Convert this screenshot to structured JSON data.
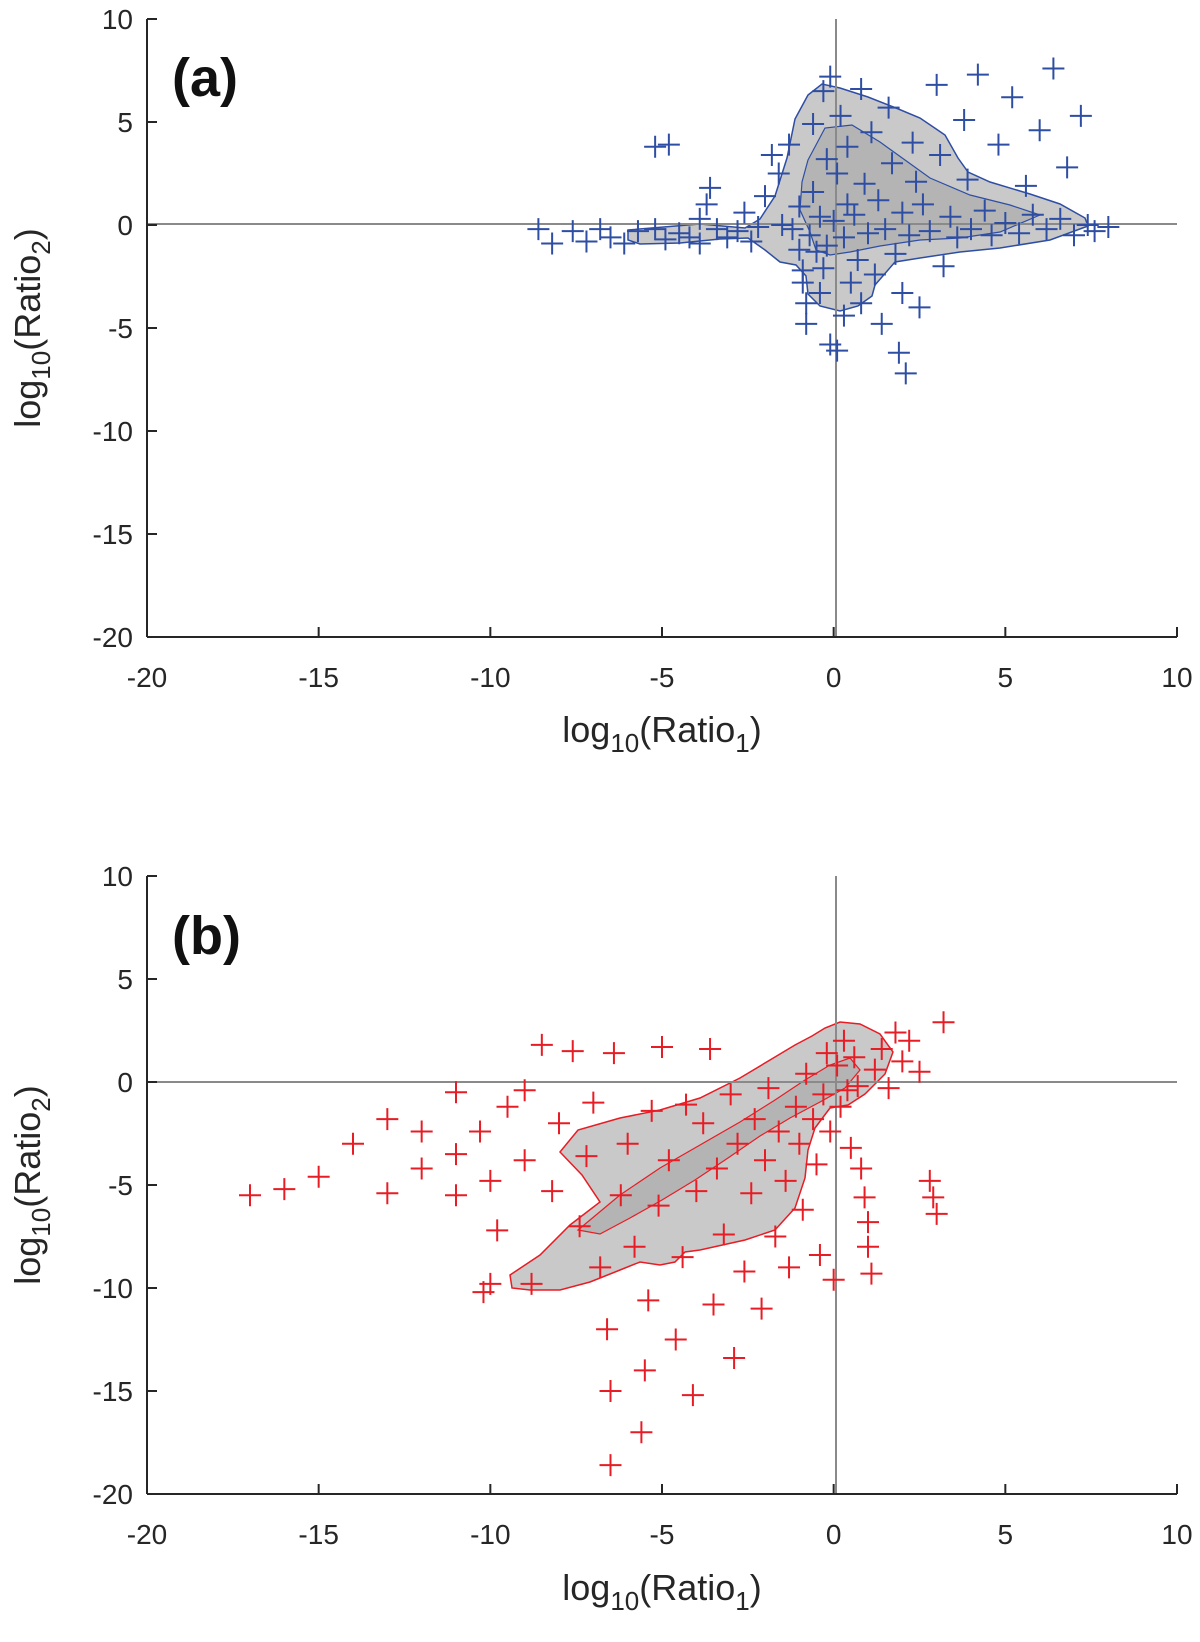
{
  "chart_data": [
    {
      "type": "scatter",
      "panel_label": "(a)",
      "xlabel": {
        "base": "log",
        "sub1": "10",
        "mid": "(Ratio",
        "sub2": "1",
        "end": ")"
      },
      "ylabel": {
        "base": "log",
        "sub1": "10",
        "mid": "(Ratio",
        "sub2": "2",
        "end": ")"
      },
      "xlim": [
        -20,
        10
      ],
      "ylim": [
        -20,
        10
      ],
      "xticks": [
        -20,
        -15,
        -10,
        -5,
        0,
        5,
        10
      ],
      "yticks": [
        10,
        5,
        0,
        -5,
        -10,
        -15,
        -20
      ],
      "xtick_labels": [
        "-20",
        "-15",
        "-10",
        "-5",
        "0",
        "5",
        "10"
      ],
      "ytick_labels": [
        "10",
        "5",
        "0",
        "-5",
        "-10",
        "-15",
        "-20"
      ],
      "reference_lines": {
        "x": 0,
        "y": 0
      },
      "grid": false,
      "marker": "+",
      "marker_color": "#2e4ea4",
      "region_fill": "#c9c9c9",
      "region_outline": "#2e4ea4",
      "points": [
        [
          -8.6,
          -0.2
        ],
        [
          -8.2,
          -0.9
        ],
        [
          -7.6,
          -0.3
        ],
        [
          -7.2,
          -0.8
        ],
        [
          -6.8,
          -0.2
        ],
        [
          -6.5,
          -0.6
        ],
        [
          -6.1,
          -0.9
        ],
        [
          -5.7,
          -0.3
        ],
        [
          -5.2,
          3.8
        ],
        [
          -5.2,
          -0.2
        ],
        [
          -4.9,
          -0.7
        ],
        [
          -4.8,
          3.9
        ],
        [
          -4.5,
          -0.4
        ],
        [
          -4.2,
          -0.6
        ],
        [
          -3.9,
          -0.9
        ],
        [
          -3.9,
          0.3
        ],
        [
          -3.7,
          1.0
        ],
        [
          -3.6,
          1.8
        ],
        [
          -3.4,
          -0.2
        ],
        [
          -3.1,
          -0.6
        ],
        [
          -2.8,
          -0.3
        ],
        [
          -2.6,
          0.6
        ],
        [
          -2.4,
          -0.8
        ],
        [
          -2.2,
          -0.1
        ],
        [
          -2.0,
          1.4
        ],
        [
          -1.8,
          3.4
        ],
        [
          -1.6,
          2.5
        ],
        [
          -1.5,
          0.0
        ],
        [
          -1.3,
          3.9
        ],
        [
          -1.2,
          -0.2
        ],
        [
          -1.0,
          0.9
        ],
        [
          -1.0,
          -1.2
        ],
        [
          -0.9,
          -2.2
        ],
        [
          -0.9,
          -2.8
        ],
        [
          -0.8,
          -3.8
        ],
        [
          -0.8,
          -4.8
        ],
        [
          -0.7,
          -0.5
        ],
        [
          -0.6,
          1.6
        ],
        [
          -0.6,
          4.9
        ],
        [
          -0.5,
          -1.3
        ],
        [
          -0.4,
          -3.3
        ],
        [
          -0.4,
          0.4
        ],
        [
          -0.3,
          6.5
        ],
        [
          -0.3,
          -2.1
        ],
        [
          -0.2,
          3.2
        ],
        [
          -0.2,
          -1.0
        ],
        [
          -0.1,
          -5.8
        ],
        [
          -0.1,
          7.2
        ],
        [
          0.0,
          0.2
        ],
        [
          0.1,
          -6.1
        ],
        [
          0.1,
          2.5
        ],
        [
          0.2,
          5.3
        ],
        [
          0.3,
          -0.6
        ],
        [
          0.3,
          -4.4
        ],
        [
          0.4,
          1.0
        ],
        [
          0.4,
          3.8
        ],
        [
          0.5,
          -2.8
        ],
        [
          0.6,
          0.5
        ],
        [
          0.7,
          -1.7
        ],
        [
          0.8,
          6.6
        ],
        [
          0.8,
          -3.8
        ],
        [
          0.9,
          2.0
        ],
        [
          1.0,
          -0.4
        ],
        [
          1.1,
          4.5
        ],
        [
          1.2,
          -2.4
        ],
        [
          1.3,
          1.2
        ],
        [
          1.4,
          -4.8
        ],
        [
          1.5,
          -0.2
        ],
        [
          1.6,
          5.7
        ],
        [
          1.7,
          3.0
        ],
        [
          1.8,
          -1.4
        ],
        [
          1.9,
          -6.2
        ],
        [
          2.0,
          -3.3
        ],
        [
          2.0,
          0.6
        ],
        [
          2.1,
          -7.2
        ],
        [
          2.2,
          -0.5
        ],
        [
          2.3,
          4.0
        ],
        [
          2.4,
          2.1
        ],
        [
          2.5,
          -4.0
        ],
        [
          2.6,
          1.0
        ],
        [
          2.8,
          -0.3
        ],
        [
          3.0,
          6.8
        ],
        [
          3.1,
          3.4
        ],
        [
          3.2,
          -2.0
        ],
        [
          3.4,
          0.4
        ],
        [
          3.6,
          -0.6
        ],
        [
          3.8,
          5.1
        ],
        [
          3.9,
          2.2
        ],
        [
          4.0,
          -0.2
        ],
        [
          4.2,
          7.3
        ],
        [
          4.4,
          0.7
        ],
        [
          4.6,
          -0.5
        ],
        [
          4.8,
          3.9
        ],
        [
          5.0,
          0.1
        ],
        [
          5.2,
          6.2
        ],
        [
          5.4,
          -0.4
        ],
        [
          5.6,
          1.9
        ],
        [
          5.8,
          0.5
        ],
        [
          6.0,
          4.6
        ],
        [
          6.2,
          -0.2
        ],
        [
          6.4,
          7.6
        ],
        [
          6.6,
          0.3
        ],
        [
          6.8,
          2.8
        ],
        [
          7.0,
          -0.5
        ],
        [
          7.2,
          5.3
        ],
        [
          7.4,
          0.0
        ],
        [
          7.6,
          -0.3
        ],
        [
          8.0,
          -0.1
        ]
      ]
    },
    {
      "type": "scatter",
      "panel_label": "(b)",
      "xlabel": {
        "base": "log",
        "sub1": "10",
        "mid": "(Ratio",
        "sub2": "1",
        "end": ")"
      },
      "ylabel": {
        "base": "log",
        "sub1": "10",
        "mid": "(Ratio",
        "sub2": "2",
        "end": ")"
      },
      "xlim": [
        -20,
        10
      ],
      "ylim": [
        -20,
        10
      ],
      "xticks": [
        -20,
        -15,
        -10,
        -5,
        0,
        5,
        10
      ],
      "yticks": [
        10,
        5,
        0,
        -5,
        -10,
        -15,
        -20
      ],
      "xtick_labels": [
        "-20",
        "-15",
        "-10",
        "-5",
        "0",
        "5",
        "10"
      ],
      "ytick_labels": [
        "10",
        "5",
        "0",
        "-5",
        "-10",
        "-15",
        "-20"
      ],
      "reference_lines": {
        "x": 0,
        "y": 0
      },
      "grid": false,
      "marker": "+",
      "marker_color": "#e81c24",
      "region_fill": "#c9c9c9",
      "region_outline": "#e81c24",
      "points": [
        [
          -17.0,
          -5.5
        ],
        [
          -16.0,
          -5.2
        ],
        [
          -15.0,
          -4.6
        ],
        [
          -14.0,
          -3.0
        ],
        [
          -13.0,
          -1.8
        ],
        [
          -13.0,
          -5.4
        ],
        [
          -12.0,
          -2.4
        ],
        [
          -12.0,
          -4.2
        ],
        [
          -11.0,
          -0.5
        ],
        [
          -11.0,
          -3.5
        ],
        [
          -11.0,
          -5.5
        ],
        [
          -10.3,
          -2.4
        ],
        [
          -10.0,
          -4.8
        ],
        [
          -10.0,
          -9.8
        ],
        [
          -10.2,
          -10.2
        ],
        [
          -9.8,
          -7.2
        ],
        [
          -9.5,
          -1.2
        ],
        [
          -9.0,
          -3.8
        ],
        [
          -9.0,
          -0.4
        ],
        [
          -8.8,
          -9.8
        ],
        [
          -8.5,
          1.8
        ],
        [
          -8.2,
          -5.3
        ],
        [
          -8.0,
          -2.0
        ],
        [
          -7.6,
          1.5
        ],
        [
          -7.4,
          -7.0
        ],
        [
          -7.2,
          -3.6
        ],
        [
          -7.0,
          -1.0
        ],
        [
          -6.8,
          -9.0
        ],
        [
          -6.6,
          -12.0
        ],
        [
          -6.5,
          -15.0
        ],
        [
          -6.5,
          -18.6
        ],
        [
          -6.4,
          1.4
        ],
        [
          -6.2,
          -5.5
        ],
        [
          -6.0,
          -3.0
        ],
        [
          -5.8,
          -8.0
        ],
        [
          -5.6,
          -17.0
        ],
        [
          -5.5,
          -14.0
        ],
        [
          -5.4,
          -10.6
        ],
        [
          -5.3,
          -1.4
        ],
        [
          -5.1,
          -6.0
        ],
        [
          -5.0,
          1.7
        ],
        [
          -4.8,
          -3.8
        ],
        [
          -4.6,
          -12.5
        ],
        [
          -4.4,
          -8.5
        ],
        [
          -4.3,
          -1.1
        ],
        [
          -4.1,
          -15.2
        ],
        [
          -4.0,
          -5.3
        ],
        [
          -3.8,
          -2.0
        ],
        [
          -3.6,
          1.6
        ],
        [
          -3.5,
          -10.8
        ],
        [
          -3.4,
          -4.2
        ],
        [
          -3.2,
          -7.4
        ],
        [
          -3.0,
          -0.6
        ],
        [
          -2.9,
          -13.4
        ],
        [
          -2.8,
          -3.0
        ],
        [
          -2.6,
          -9.2
        ],
        [
          -2.4,
          -5.4
        ],
        [
          -2.3,
          -1.8
        ],
        [
          -2.1,
          -11.0
        ],
        [
          -2.0,
          -3.8
        ],
        [
          -1.9,
          -0.3
        ],
        [
          -1.7,
          -7.5
        ],
        [
          -1.6,
          -2.4
        ],
        [
          -1.4,
          -4.8
        ],
        [
          -1.3,
          -9.0
        ],
        [
          -1.1,
          -1.2
        ],
        [
          -1.0,
          -3.0
        ],
        [
          -0.9,
          -6.2
        ],
        [
          -0.8,
          0.4
        ],
        [
          -0.6,
          -1.8
        ],
        [
          -0.5,
          -4.0
        ],
        [
          -0.4,
          -8.4
        ],
        [
          -0.3,
          -0.6
        ],
        [
          -0.2,
          1.4
        ],
        [
          -0.1,
          -2.4
        ],
        [
          0.0,
          -9.6
        ],
        [
          0.1,
          0.8
        ],
        [
          0.2,
          -1.2
        ],
        [
          0.3,
          2.0
        ],
        [
          0.4,
          -0.4
        ],
        [
          0.5,
          -3.2
        ],
        [
          0.6,
          1.2
        ],
        [
          0.7,
          -0.2
        ],
        [
          0.8,
          -4.2
        ],
        [
          0.9,
          -5.6
        ],
        [
          1.0,
          -6.8
        ],
        [
          1.0,
          -8.0
        ],
        [
          1.1,
          -9.3
        ],
        [
          1.2,
          0.6
        ],
        [
          1.4,
          1.6
        ],
        [
          1.6,
          -0.3
        ],
        [
          1.8,
          2.4
        ],
        [
          2.0,
          1.0
        ],
        [
          2.2,
          2.0
        ],
        [
          2.5,
          0.5
        ],
        [
          2.8,
          -4.8
        ],
        [
          2.9,
          -5.6
        ],
        [
          3.0,
          -6.4
        ],
        [
          3.2,
          2.9
        ]
      ]
    }
  ]
}
